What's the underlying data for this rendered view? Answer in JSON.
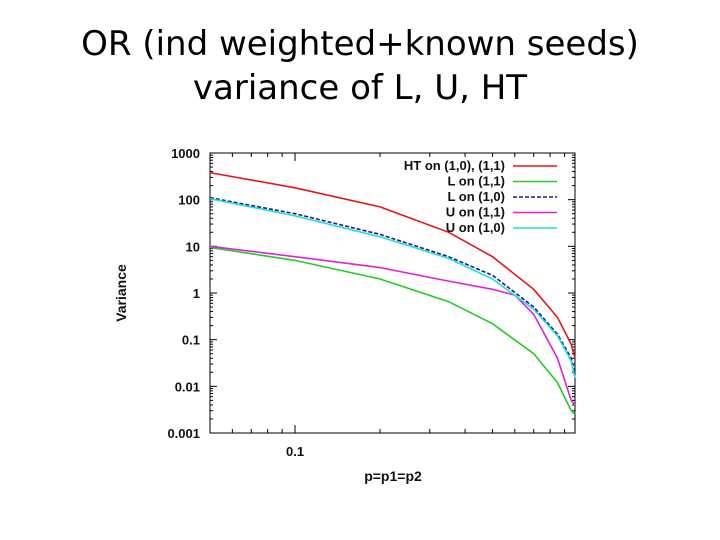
{
  "slide": {
    "title_line1": "OR (ind weighted+known seeds)",
    "title_line2": "variance of L, U, HT"
  },
  "chart_data": {
    "type": "line",
    "xlabel": "p=p1=p2",
    "ylabel": "Variance",
    "xscale": "log",
    "yscale": "log",
    "xlim": [
      0.05,
      0.98
    ],
    "ylim": [
      0.001,
      1000
    ],
    "x_ticks": [
      {
        "value": 0.1,
        "label": "0.1"
      }
    ],
    "y_ticks": [
      {
        "value": 1000,
        "label": "1000"
      },
      {
        "value": 100,
        "label": "100"
      },
      {
        "value": 10,
        "label": "10"
      },
      {
        "value": 1,
        "label": "1"
      },
      {
        "value": 0.1,
        "label": "0.1"
      },
      {
        "value": 0.01,
        "label": "0.01"
      },
      {
        "value": 0.001,
        "label": "0.001"
      }
    ],
    "legend_position": "top-right",
    "series": [
      {
        "name": "HT on (1,0), (1,1)",
        "color": "#e8141b",
        "dash": "solid",
        "points": [
          [
            0.05,
            380
          ],
          [
            0.1,
            180
          ],
          [
            0.2,
            70
          ],
          [
            0.35,
            20
          ],
          [
            0.5,
            6
          ],
          [
            0.7,
            1.2
          ],
          [
            0.85,
            0.3
          ],
          [
            0.95,
            0.08
          ],
          [
            0.98,
            0.04
          ]
        ]
      },
      {
        "name": "L on (1,1)",
        "color": "#22cc22",
        "dash": "solid",
        "points": [
          [
            0.05,
            9.5
          ],
          [
            0.1,
            5
          ],
          [
            0.2,
            2
          ],
          [
            0.35,
            0.65
          ],
          [
            0.5,
            0.22
          ],
          [
            0.7,
            0.05
          ],
          [
            0.85,
            0.012
          ],
          [
            0.95,
            0.003
          ],
          [
            0.98,
            0.0025
          ]
        ]
      },
      {
        "name": "L on (1,0)",
        "color": "#1a1a8c",
        "dash": "dashed",
        "points": [
          [
            0.05,
            110
          ],
          [
            0.1,
            50
          ],
          [
            0.2,
            18
          ],
          [
            0.35,
            6
          ],
          [
            0.5,
            2.4
          ],
          [
            0.7,
            0.5
          ],
          [
            0.85,
            0.13
          ],
          [
            0.95,
            0.04
          ],
          [
            0.98,
            0.018
          ]
        ]
      },
      {
        "name": "U on (1,1)",
        "color": "#e020e0",
        "dash": "solid",
        "points": [
          [
            0.05,
            10
          ],
          [
            0.1,
            6
          ],
          [
            0.2,
            3.5
          ],
          [
            0.35,
            1.8
          ],
          [
            0.5,
            1.2
          ],
          [
            0.6,
            0.9
          ],
          [
            0.7,
            0.35
          ],
          [
            0.85,
            0.04
          ],
          [
            0.95,
            0.005
          ],
          [
            0.98,
            0.004
          ]
        ]
      },
      {
        "name": "U on (1,0)",
        "color": "#22dddd",
        "dash": "solid",
        "points": [
          [
            0.05,
            105
          ],
          [
            0.1,
            45
          ],
          [
            0.2,
            16
          ],
          [
            0.35,
            5.5
          ],
          [
            0.5,
            2
          ],
          [
            0.7,
            0.45
          ],
          [
            0.85,
            0.12
          ],
          [
            0.95,
            0.035
          ],
          [
            0.98,
            0.015
          ]
        ]
      }
    ]
  }
}
